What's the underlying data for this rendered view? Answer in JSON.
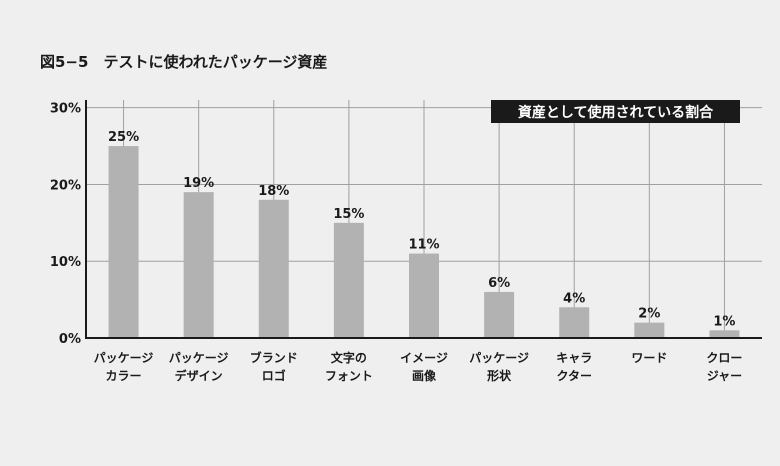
{
  "chart_data": {
    "type": "bar",
    "title": "図5−5　テストに使われたパッケージ資産",
    "legend_label": "資産として使用されている割合",
    "legend_position": "top-right",
    "categories": [
      [
        "パッケージ",
        "カラー"
      ],
      [
        "パッケージ",
        "デザイン"
      ],
      [
        "ブランド",
        "ロゴ"
      ],
      [
        "文字の",
        "フォント"
      ],
      [
        "イメージ",
        "画像"
      ],
      [
        "パッケージ",
        "形状"
      ],
      [
        "キャラ",
        "クター"
      ],
      [
        "ワード"
      ],
      [
        "クロー",
        "ジャー"
      ]
    ],
    "values": [
      25,
      19,
      18,
      15,
      11,
      6,
      4,
      2,
      1
    ],
    "value_labels": [
      "25%",
      "19%",
      "18%",
      "15%",
      "11%",
      "6%",
      "4%",
      "2%",
      "1%"
    ],
    "y_ticks": [
      {
        "value": 0,
        "label": "0%"
      },
      {
        "value": 10,
        "label": "10%"
      },
      {
        "value": 20,
        "label": "20%"
      },
      {
        "value": 30,
        "label": "30%"
      }
    ],
    "ylim": [
      0,
      31
    ],
    "grid": true,
    "colors": {
      "bar": "#b2b2b2",
      "grid": "#a0a0a0",
      "axis": "#1a1a1a",
      "legend_bg": "#1a1a1a",
      "background": "#efefef"
    }
  }
}
